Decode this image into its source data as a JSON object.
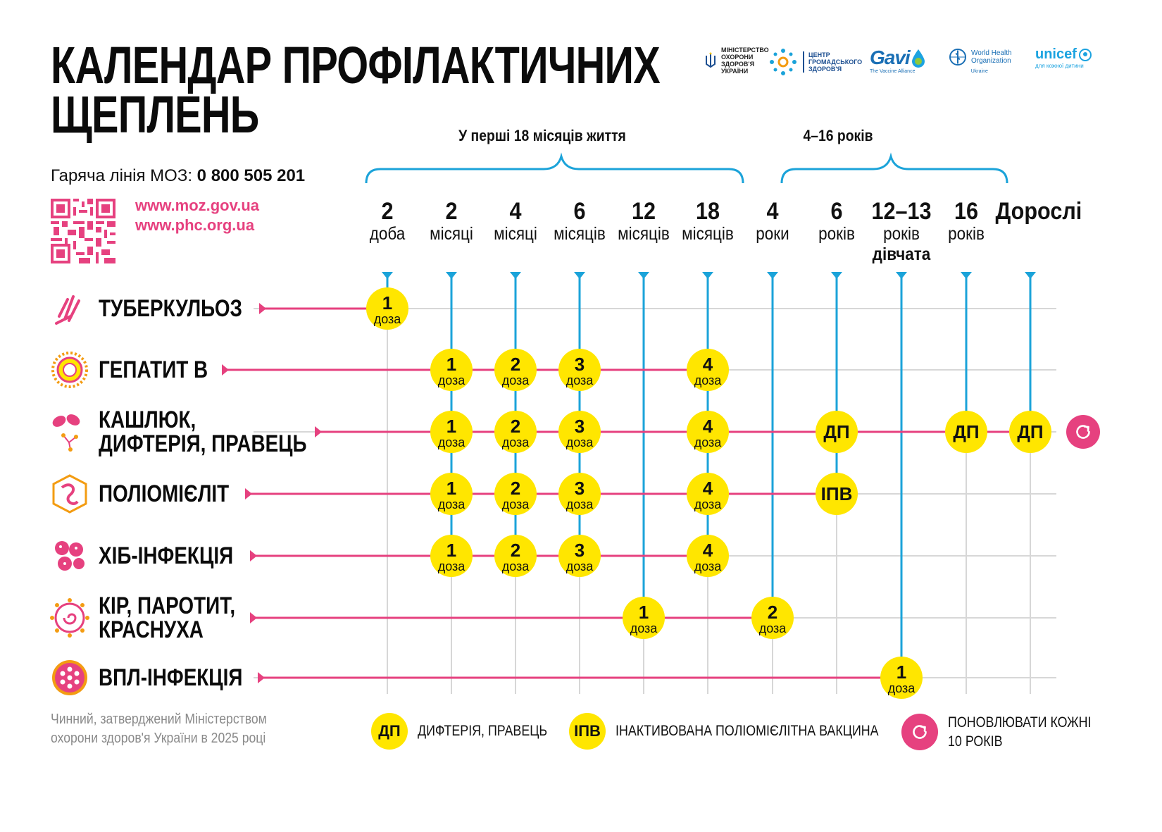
{
  "title": "КАЛЕНДАР ПРОФІЛАКТИЧНИХ\nЩЕПЛЕНЬ",
  "hotline": {
    "label": "Гаряча лінія МОЗ: ",
    "number": "0 800 505 201"
  },
  "links": [
    "www.moz.gov.ua",
    "www.phc.org.ua"
  ],
  "logos": {
    "moz": "МІНІСТЕРСТВО\nОХОРОНИ\nЗДОРОВ'Я\nУКРАЇНИ",
    "phc": "ЦЕНТР\nГРОМАДСЬКОГО\nЗДОРОВ'Я",
    "gavi": "Gavi",
    "gavi_sub": "The Vaccine Alliance",
    "who": "World Health\nOrganization",
    "who_sub": "Ukraine",
    "unicef": "unicef",
    "unicef_sub": "для кожної дитини"
  },
  "groups": [
    {
      "label": "У перші 18 місяців життя"
    },
    {
      "label": "4–16 років"
    }
  ],
  "columns": [
    {
      "n": "2",
      "u": "доба",
      "e": ""
    },
    {
      "n": "2",
      "u": "місяці",
      "e": ""
    },
    {
      "n": "4",
      "u": "місяці",
      "e": ""
    },
    {
      "n": "6",
      "u": "місяців",
      "e": ""
    },
    {
      "n": "12",
      "u": "місяців",
      "e": ""
    },
    {
      "n": "18",
      "u": "місяців",
      "e": ""
    },
    {
      "n": "4",
      "u": "роки",
      "e": ""
    },
    {
      "n": "6",
      "u": "років",
      "e": ""
    },
    {
      "n": "12–13",
      "u": "років",
      "e": "дівчата"
    },
    {
      "n": "16",
      "u": "років",
      "e": ""
    },
    {
      "n": "Дорослі",
      "u": "",
      "e": ""
    }
  ],
  "dose_word": "доза",
  "diseases": [
    {
      "name": "ТУБЕРКУЛЬОЗ",
      "icon": "tuberculosis-icon",
      "doses": [
        {
          "col": 0,
          "num": "1"
        }
      ]
    },
    {
      "name": "ГЕПАТИТ В",
      "icon": "hepatitis-b-icon",
      "doses": [
        {
          "col": 1,
          "num": "1"
        },
        {
          "col": 2,
          "num": "2"
        },
        {
          "col": 3,
          "num": "3"
        },
        {
          "col": 5,
          "num": "4"
        }
      ]
    },
    {
      "name": "КАШЛЮК,\nДИФТЕРІЯ, ПРАВЕЦЬ",
      "icon": "pertussis-icon",
      "doses": [
        {
          "col": 1,
          "num": "1"
        },
        {
          "col": 2,
          "num": "2"
        },
        {
          "col": 3,
          "num": "3"
        },
        {
          "col": 5,
          "num": "4"
        },
        {
          "col": 7,
          "label": "ДП"
        },
        {
          "col": 9,
          "label": "ДП"
        },
        {
          "col": 10,
          "label": "ДП"
        }
      ],
      "repeat": true
    },
    {
      "name": "ПОЛІОМІЄЛІТ",
      "icon": "polio-icon",
      "doses": [
        {
          "col": 1,
          "num": "1"
        },
        {
          "col": 2,
          "num": "2"
        },
        {
          "col": 3,
          "num": "3"
        },
        {
          "col": 5,
          "num": "4"
        },
        {
          "col": 7,
          "label": "ІПВ"
        }
      ]
    },
    {
      "name": "ХІБ-ІНФЕКЦІЯ",
      "icon": "hib-icon",
      "doses": [
        {
          "col": 1,
          "num": "1"
        },
        {
          "col": 2,
          "num": "2"
        },
        {
          "col": 3,
          "num": "3"
        },
        {
          "col": 5,
          "num": "4"
        }
      ]
    },
    {
      "name": "КІР, ПАРОТИТ,\nКРАСНУХА",
      "icon": "measles-icon",
      "doses": [
        {
          "col": 4,
          "num": "1"
        },
        {
          "col": 6,
          "num": "2"
        }
      ]
    },
    {
      "name": "ВПЛ-ІНФЕКЦІЯ",
      "icon": "hpv-icon",
      "doses": [
        {
          "col": 8,
          "num": "1"
        }
      ]
    }
  ],
  "footnote": "Чинний, затверджений Міністерством охорони здоров'я України в 2025 році",
  "legend": [
    {
      "symbol": "ДП",
      "text": "ДИФТЕРІЯ, ПРАВЕЦЬ"
    },
    {
      "symbol": "ІПВ",
      "text": "ІНАКТИВОВАНА ПОЛІОМІЄЛІТНА ВАКЦИНА"
    },
    {
      "symbol": "refresh-icon",
      "text": "ПОНОВЛЮВАТИ КОЖНІ\n10 РОКІВ"
    }
  ],
  "colors": {
    "pink": "#e6417f",
    "blue": "#1ba3d9",
    "yellow": "#ffe600",
    "grid": "#d7d7d7"
  }
}
